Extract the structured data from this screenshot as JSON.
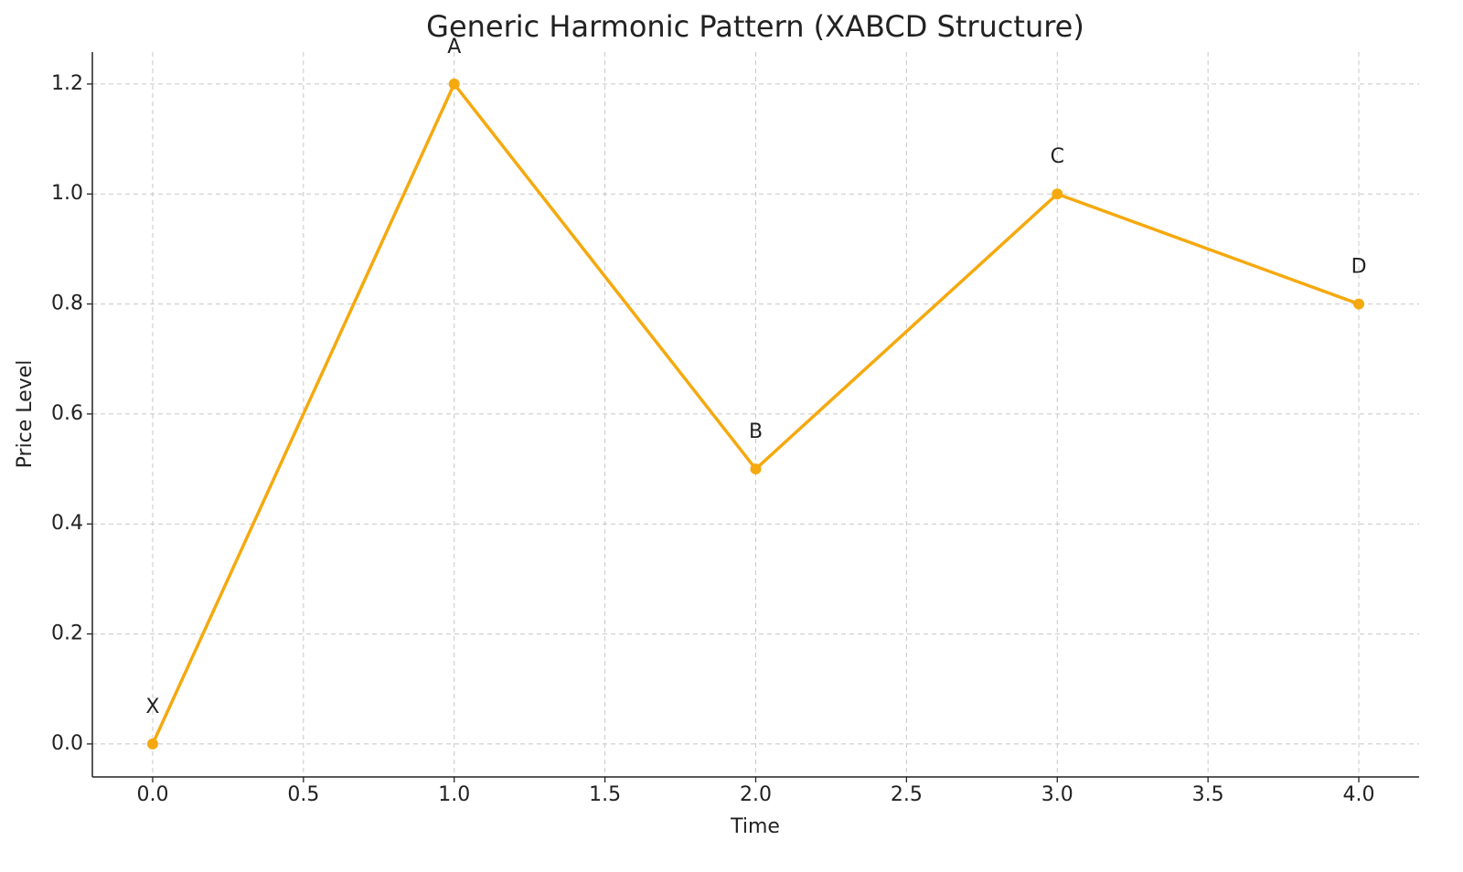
{
  "chart_data": {
    "type": "line",
    "title": "Generic Harmonic Pattern (XABCD Structure)",
    "x_label": "Time",
    "y_label": "Price Level",
    "x": [
      0,
      1,
      2,
      3,
      4
    ],
    "series": [
      {
        "values": [
          0,
          1.2,
          0.5,
          1.0,
          0.8
        ],
        "color": "#f5a90f",
        "point_labels": [
          "X",
          "A",
          "B",
          "C",
          "D"
        ]
      }
    ],
    "xlim": [
      -0.2,
      4.2
    ],
    "xticks": [
      {
        "value": 0,
        "label": "0.0"
      },
      0.5,
      {
        "value": 1,
        "label": "1.0"
      },
      1.5,
      {
        "value": 2,
        "label": "2.0"
      },
      2.5,
      {
        "value": 3,
        "label": "3.0"
      },
      3.5,
      {
        "value": 4,
        "label": "4.0"
      }
    ],
    "ylim": [
      -0.06,
      1.258
    ],
    "yticks": [
      {
        "value": 0,
        "label": "0.0"
      },
      0.2,
      0.4,
      0.6,
      0.8,
      {
        "value": 1,
        "label": "1.0"
      },
      1.2
    ],
    "grid": true
  }
}
